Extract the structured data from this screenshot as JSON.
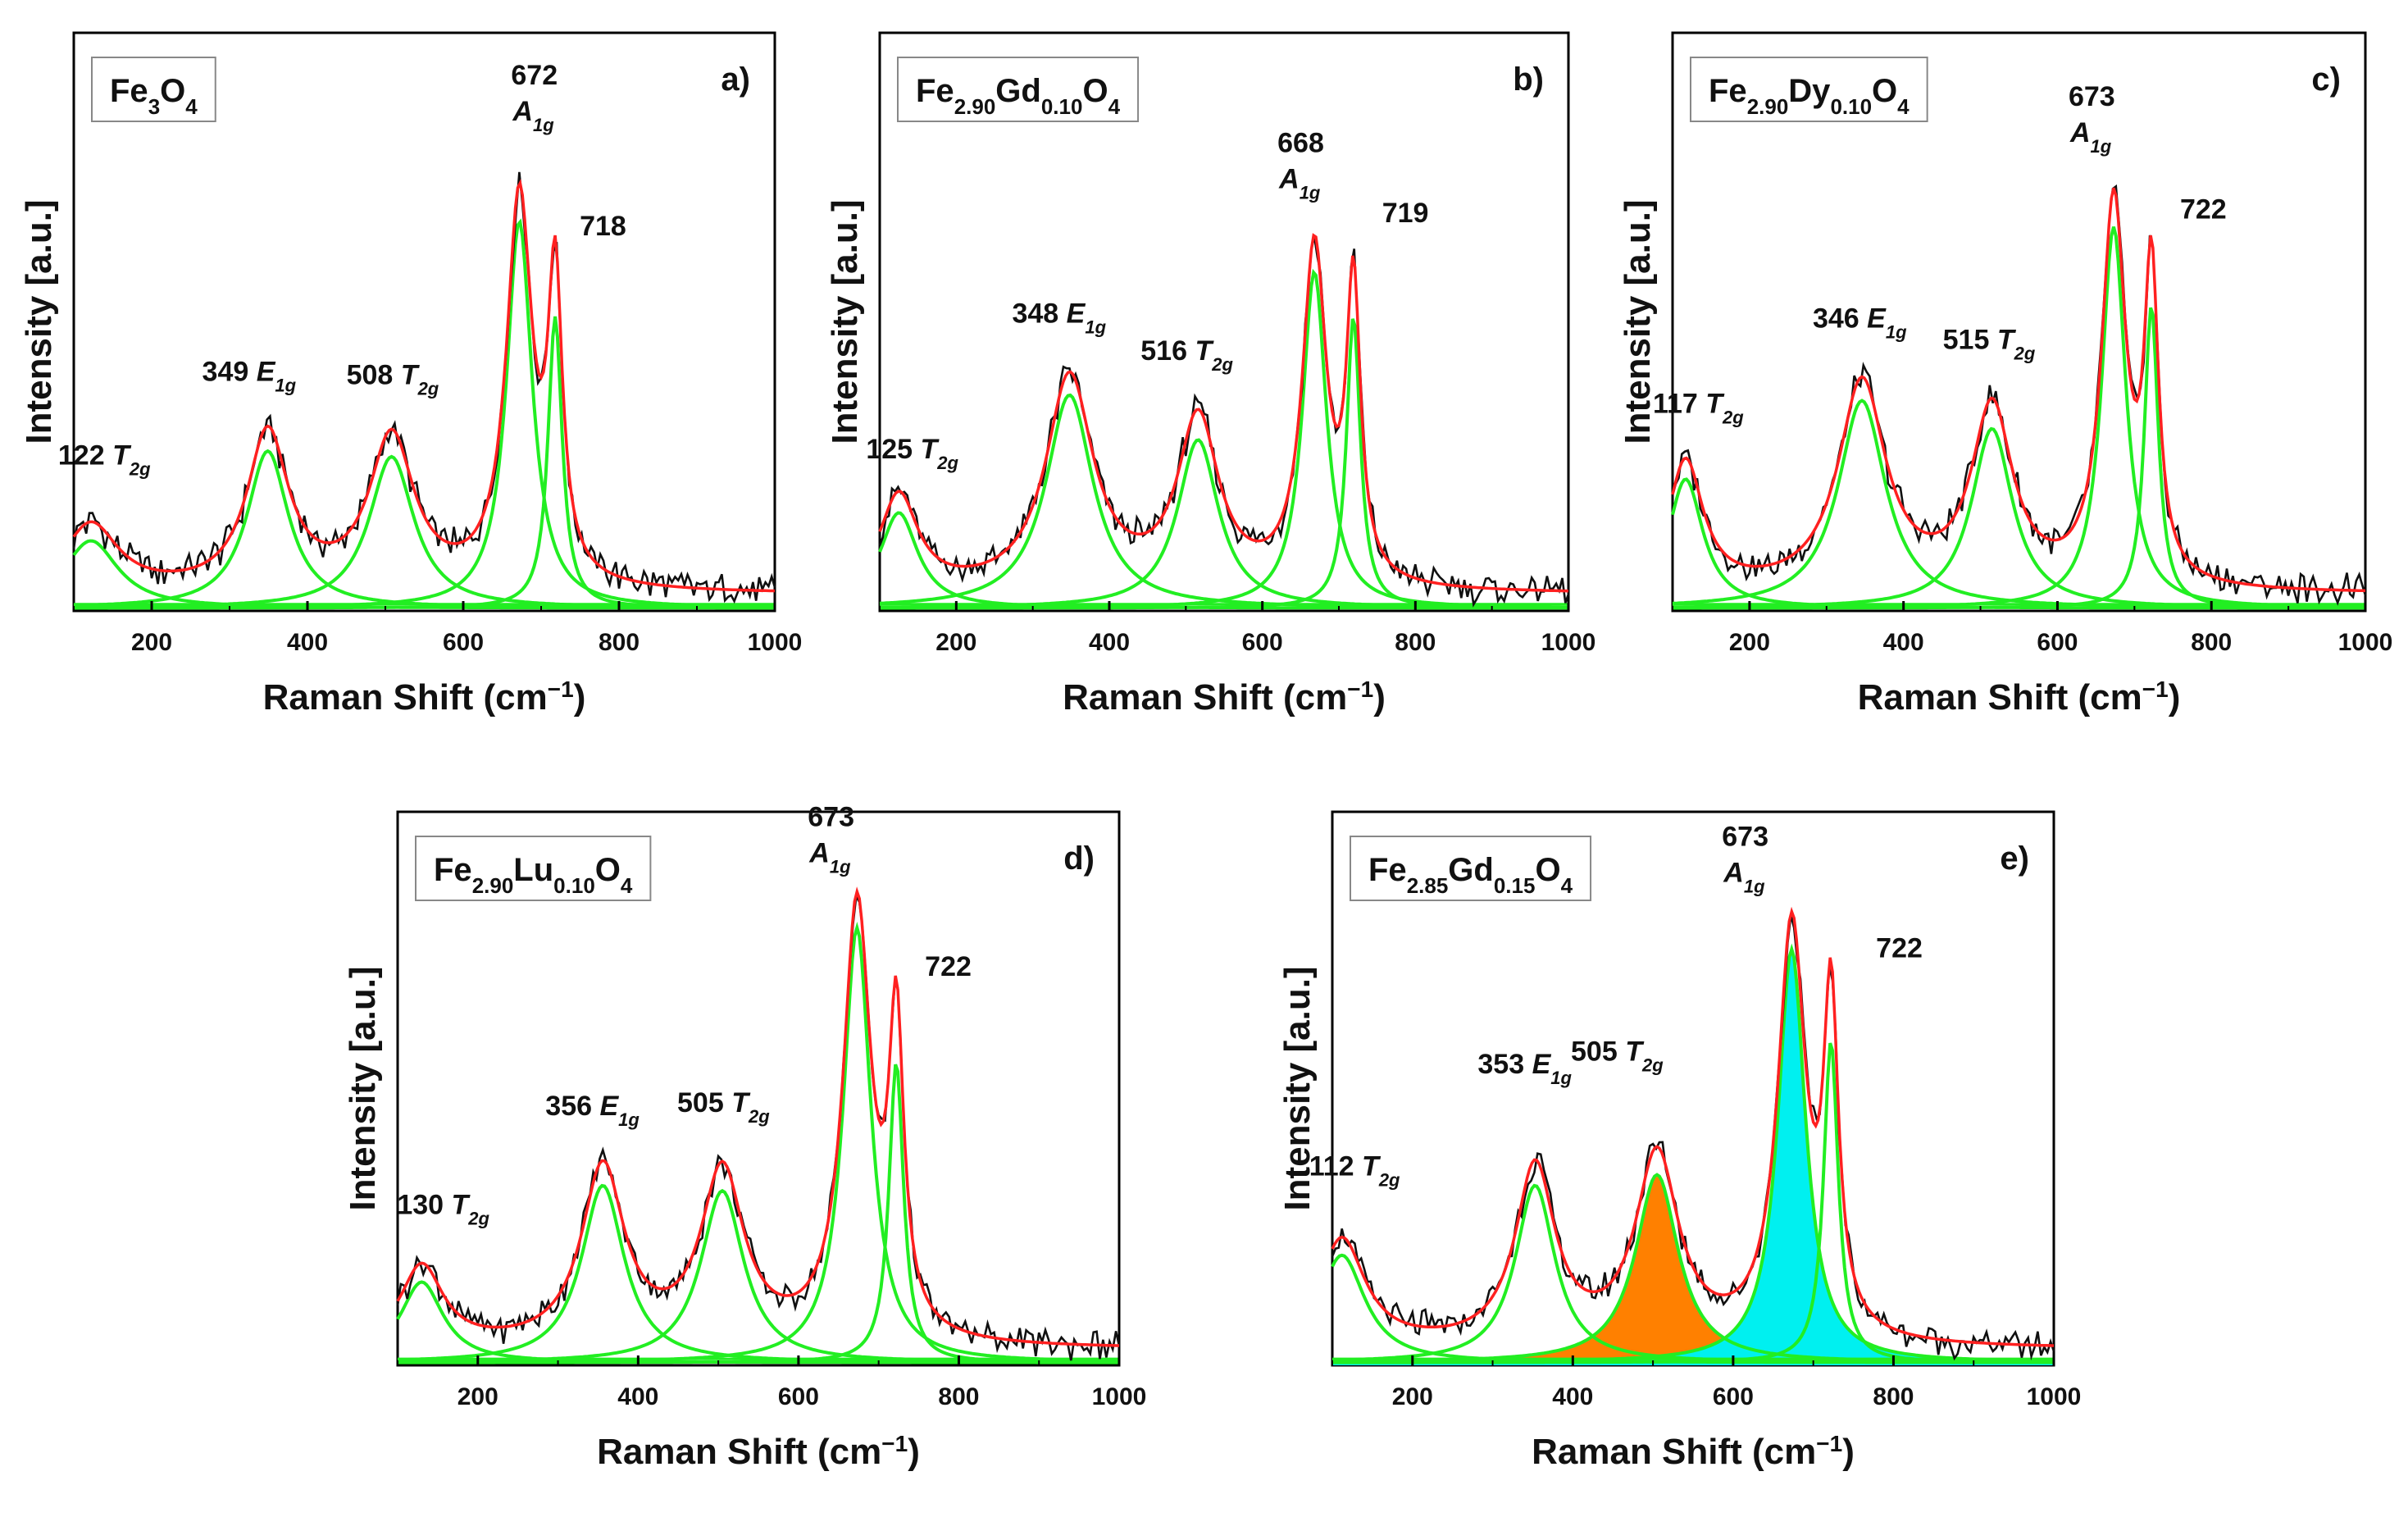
{
  "figure": {
    "xlabel": "Raman Shift (cm",
    "xlabel_sup": "−1",
    "xlabel_close": ")",
    "ylabel": "Intensity [a.u.]"
  },
  "chart_data": [
    {
      "type": "line",
      "panel_letter": "a)",
      "compound": [
        {
          "t": "Fe"
        },
        {
          "t": "3",
          "sub": true
        },
        {
          "t": "O"
        },
        {
          "t": "4",
          "sub": true
        }
      ],
      "xlim": [
        100,
        1000
      ],
      "xticks": [
        200,
        400,
        600,
        800,
        1000
      ],
      "xlabel": "Raman Shift (cm−1)",
      "ylabel": "Intensity [a.u.]",
      "baseline": 0.03,
      "peaks": [
        {
          "center": 122,
          "amplitude": 0.12,
          "width": 85,
          "label": "122",
          "mode": "T",
          "mode_sub": "2g"
        },
        {
          "center": 349,
          "amplitude": 0.28,
          "width": 65,
          "label": "349",
          "mode": "E",
          "mode_sub": "1g"
        },
        {
          "center": 508,
          "amplitude": 0.27,
          "width": 70,
          "label": "508",
          "mode": "T",
          "mode_sub": "2g"
        },
        {
          "center": 672,
          "amplitude": 0.69,
          "width": 40,
          "label": "672",
          "mode": "A",
          "mode_sub": "1g"
        },
        {
          "center": 718,
          "amplitude": 0.52,
          "width": 22,
          "label": "718"
        }
      ]
    },
    {
      "type": "line",
      "panel_letter": "b)",
      "compound": [
        {
          "t": "Fe"
        },
        {
          "t": "2.90",
          "sub": true
        },
        {
          "t": "Gd"
        },
        {
          "t": "0.10",
          "sub": true
        },
        {
          "t": "O"
        },
        {
          "t": "4",
          "sub": true
        }
      ],
      "xlim": [
        100,
        1000
      ],
      "xticks": [
        200,
        400,
        600,
        800,
        1000
      ],
      "xlabel": "Raman Shift (cm−1)",
      "ylabel": "Intensity [a.u.]",
      "baseline": 0.03,
      "peaks": [
        {
          "center": 125,
          "amplitude": 0.17,
          "width": 60,
          "label": "125",
          "mode": "T",
          "mode_sub": "2g"
        },
        {
          "center": 348,
          "amplitude": 0.38,
          "width": 75,
          "label": "348",
          "mode": "E",
          "mode_sub": "1g"
        },
        {
          "center": 516,
          "amplitude": 0.3,
          "width": 65,
          "label": "516",
          "mode": "T",
          "mode_sub": "2g"
        },
        {
          "center": 668,
          "amplitude": 0.6,
          "width": 38,
          "label": "668",
          "mode": "A",
          "mode_sub": "1g"
        },
        {
          "center": 719,
          "amplitude": 0.52,
          "width": 22,
          "label": "719"
        }
      ]
    },
    {
      "type": "line",
      "panel_letter": "c)",
      "compound": [
        {
          "t": "Fe"
        },
        {
          "t": "2.90",
          "sub": true
        },
        {
          "t": "Dy"
        },
        {
          "t": "0.10",
          "sub": true
        },
        {
          "t": "O"
        },
        {
          "t": "4",
          "sub": true
        }
      ],
      "xlim": [
        100,
        1000
      ],
      "xticks": [
        200,
        400,
        600,
        800,
        1000
      ],
      "xlabel": "Raman Shift (cm−1)",
      "ylabel": "Intensity [a.u.]",
      "baseline": 0.03,
      "peaks": [
        {
          "center": 117,
          "amplitude": 0.23,
          "width": 55,
          "label": "117",
          "mode": "T",
          "mode_sub": "2g"
        },
        {
          "center": 346,
          "amplitude": 0.37,
          "width": 75,
          "label": "346",
          "mode": "E",
          "mode_sub": "1g"
        },
        {
          "center": 515,
          "amplitude": 0.32,
          "width": 65,
          "label": "515",
          "mode": "T",
          "mode_sub": "2g"
        },
        {
          "center": 673,
          "amplitude": 0.68,
          "width": 38,
          "label": "673",
          "mode": "A",
          "mode_sub": "1g"
        },
        {
          "center": 722,
          "amplitude": 0.54,
          "width": 22,
          "label": "722"
        }
      ]
    },
    {
      "type": "line",
      "panel_letter": "d)",
      "compound": [
        {
          "t": "Fe"
        },
        {
          "t": "2.90",
          "sub": true
        },
        {
          "t": "Lu"
        },
        {
          "t": "0.10",
          "sub": true
        },
        {
          "t": "O"
        },
        {
          "t": "4",
          "sub": true
        }
      ],
      "xlim": [
        100,
        1000
      ],
      "xticks": [
        200,
        400,
        600,
        800,
        1000
      ],
      "xlabel": "Raman Shift (cm−1)",
      "ylabel": "Intensity [a.u.]",
      "baseline": 0.03,
      "peaks": [
        {
          "center": 130,
          "amplitude": 0.15,
          "width": 65,
          "label": "130",
          "mode": "T",
          "mode_sub": "2g"
        },
        {
          "center": 356,
          "amplitude": 0.33,
          "width": 65,
          "label": "356",
          "mode": "E",
          "mode_sub": "1g"
        },
        {
          "center": 505,
          "amplitude": 0.32,
          "width": 65,
          "label": "505",
          "mode": "T",
          "mode_sub": "2g"
        },
        {
          "center": 673,
          "amplitude": 0.81,
          "width": 42,
          "label": "673",
          "mode": "A",
          "mode_sub": "1g"
        },
        {
          "center": 722,
          "amplitude": 0.56,
          "width": 22,
          "label": "722"
        }
      ]
    },
    {
      "type": "line",
      "panel_letter": "e)",
      "compound": [
        {
          "t": "Fe"
        },
        {
          "t": "2.85",
          "sub": true
        },
        {
          "t": "Gd"
        },
        {
          "t": "0.15",
          "sub": true
        },
        {
          "t": "O"
        },
        {
          "t": "4",
          "sub": true
        }
      ],
      "xlim": [
        100,
        1000
      ],
      "xticks": [
        200,
        400,
        600,
        800,
        1000
      ],
      "xlabel": "Raman Shift (cm−1)",
      "ylabel": "Intensity [a.u.]",
      "baseline": 0.03,
      "peaks": [
        {
          "center": 112,
          "amplitude": 0.2,
          "width": 70,
          "label": "112",
          "mode": "T",
          "mode_sub": "2g"
        },
        {
          "center": 353,
          "amplitude": 0.33,
          "width": 60,
          "label": "353",
          "mode": "E",
          "mode_sub": "1g"
        },
        {
          "center": 505,
          "amplitude": 0.35,
          "width": 65,
          "label": "505",
          "mode": "T",
          "mode_sub": "2g",
          "fill": "#ff8000"
        },
        {
          "center": 673,
          "amplitude": 0.77,
          "width": 42,
          "label": "673",
          "mode": "A",
          "mode_sub": "1g",
          "fill": "#00f0f0"
        },
        {
          "center": 722,
          "amplitude": 0.6,
          "width": 22,
          "label": "722"
        }
      ]
    }
  ],
  "colors": {
    "component": "#22ee22",
    "fit": "#ff2020",
    "experimental": "#101010",
    "t2g_fill": "#ff8000",
    "a1g_fill": "#00f0f0"
  }
}
